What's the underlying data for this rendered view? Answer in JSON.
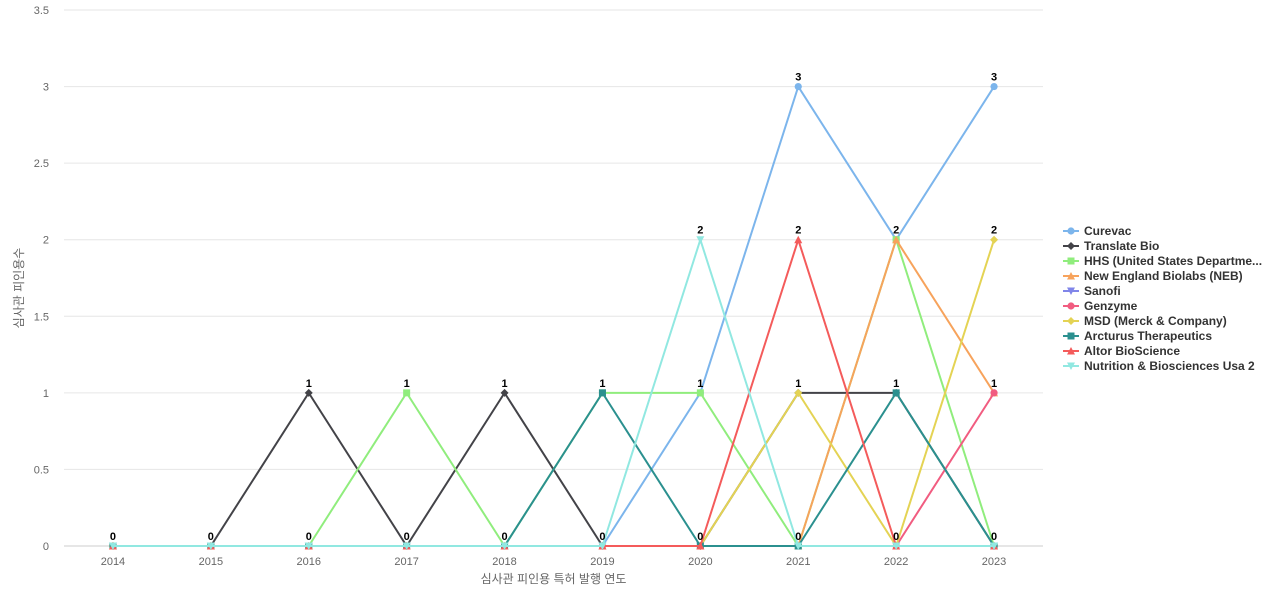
{
  "chart_data": {
    "type": "line",
    "title": "",
    "xlabel": "심사관 피인용 특허 발행 연도",
    "ylabel": "심사관 피인용수",
    "ylim": [
      0,
      3.5
    ],
    "y_ticks": [
      0,
      0.5,
      1,
      1.5,
      2,
      2.5,
      3,
      3.5
    ],
    "y_tick_labels": [
      "0",
      "0.5",
      "1",
      "1.5",
      "2",
      "2.5",
      "3",
      "3.5"
    ],
    "categories": [
      "2014",
      "2015",
      "2016",
      "2017",
      "2018",
      "2019",
      "2020",
      "2021",
      "2022",
      "2023"
    ],
    "grid": true,
    "legend_position": "right",
    "series": [
      {
        "name": "Curevac",
        "color": "#7cb5ec",
        "marker": "circle",
        "values": [
          0,
          0,
          0,
          0,
          0,
          0,
          1,
          3,
          2,
          3
        ]
      },
      {
        "name": "Translate Bio",
        "color": "#434348",
        "marker": "diamond",
        "values": [
          0,
          0,
          1,
          0,
          1,
          0,
          0,
          1,
          1,
          0
        ]
      },
      {
        "name": "HHS (United States Departme...",
        "color": "#90ed7d",
        "marker": "square",
        "values": [
          0,
          0,
          0,
          1,
          0,
          1,
          1,
          0,
          2,
          0
        ]
      },
      {
        "name": "New England Biolabs (NEB)",
        "color": "#f7a35c",
        "marker": "triangle",
        "values": [
          0,
          0,
          0,
          0,
          0,
          0,
          0,
          0,
          2,
          1
        ]
      },
      {
        "name": "Sanofi",
        "color": "#8085e9",
        "marker": "triangle-down",
        "values": [
          0,
          0,
          0,
          0,
          0,
          0,
          0,
          0,
          0,
          0
        ]
      },
      {
        "name": "Genzyme",
        "color": "#f15c80",
        "marker": "circle",
        "values": [
          0,
          0,
          0,
          0,
          0,
          0,
          0,
          0,
          0,
          1
        ]
      },
      {
        "name": "MSD (Merck & Company)",
        "color": "#e4d354",
        "marker": "diamond",
        "values": [
          0,
          0,
          0,
          0,
          0,
          0,
          0,
          1,
          0,
          2
        ]
      },
      {
        "name": "Arcturus Therapeutics",
        "color": "#2b908f",
        "marker": "square",
        "values": [
          0,
          0,
          0,
          0,
          0,
          1,
          0,
          0,
          1,
          0
        ]
      },
      {
        "name": "Altor BioScience",
        "color": "#f45b5b",
        "marker": "triangle",
        "values": [
          0,
          0,
          0,
          0,
          0,
          0,
          0,
          2,
          0,
          0
        ]
      },
      {
        "name": "Nutrition & Biosciences Usa 2",
        "color": "#91e8e1",
        "marker": "triangle-down",
        "values": [
          0,
          0,
          0,
          0,
          0,
          0,
          2,
          0,
          0,
          0
        ]
      }
    ],
    "data_labels": [
      {
        "category": "2014",
        "value": 0
      },
      {
        "category": "2015",
        "value": 0
      },
      {
        "category": "2016",
        "value": 0
      },
      {
        "category": "2016",
        "value": 1
      },
      {
        "category": "2017",
        "value": 1
      },
      {
        "category": "2017",
        "value": 0
      },
      {
        "category": "2018",
        "value": 1
      },
      {
        "category": "2018",
        "value": 0
      },
      {
        "category": "2019",
        "value": 1
      },
      {
        "category": "2019",
        "value": 0
      },
      {
        "category": "2020",
        "value": 2
      },
      {
        "category": "2020",
        "value": 1
      },
      {
        "category": "2020",
        "value": 0
      },
      {
        "category": "2021",
        "value": 3
      },
      {
        "category": "2021",
        "value": 2
      },
      {
        "category": "2021",
        "value": 1
      },
      {
        "category": "2021",
        "value": 0
      },
      {
        "category": "2022",
        "value": 2
      },
      {
        "category": "2022",
        "value": 1
      },
      {
        "category": "2022",
        "value": 0
      },
      {
        "category": "2023",
        "value": 3
      },
      {
        "category": "2023",
        "value": 2
      },
      {
        "category": "2023",
        "value": 1
      },
      {
        "category": "2023",
        "value": 0
      }
    ]
  }
}
